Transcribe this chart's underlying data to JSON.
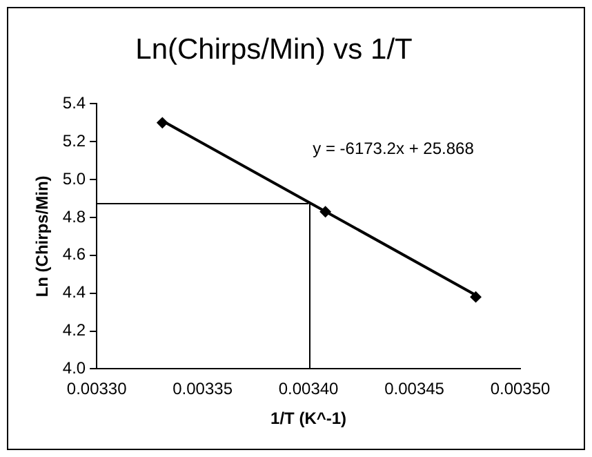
{
  "chart_data": {
    "type": "scatter",
    "title": "Ln(Chirps/Min) vs 1/T",
    "xlabel": "1/T (K^-1)",
    "ylabel": "Ln (Chirps/Min)",
    "x": [
      0.003331,
      0.003408,
      0.003479
    ],
    "series": [
      {
        "color": "#000000",
        "values": [
          5.3,
          4.83,
          4.38
        ],
        "marker": "diamond"
      },
      {
        "type": "line",
        "color": "#000000",
        "x": [
          0.003331,
          0.003479
        ],
        "values": [
          5.31,
          4.39
        ],
        "marker": "none",
        "line_style": "solid"
      }
    ],
    "xlim": [
      0.0033,
      0.0035
    ],
    "xticks": [
      {
        "value": 0.0033,
        "label": "0.00330"
      },
      {
        "value": 0.00335,
        "label": "0.00335"
      },
      {
        "value": 0.0034,
        "label": "0.00340"
      },
      {
        "value": 0.00345,
        "label": "0.00345"
      },
      {
        "value": 0.0035,
        "label": "0.00350"
      }
    ],
    "ylim": [
      4.0,
      5.4
    ],
    "yticks": [
      {
        "value": 4.0,
        "label": "4.0"
      },
      {
        "value": 4.2,
        "label": "4.2"
      },
      {
        "value": 4.4,
        "label": "4.4"
      },
      {
        "value": 4.6,
        "label": "4.6"
      },
      {
        "value": 4.8,
        "label": "4.8"
      },
      {
        "value": 5.0,
        "label": "5.0"
      },
      {
        "value": 5.2,
        "label": "5.2"
      },
      {
        "value": 5.4,
        "label": "5.4"
      }
    ],
    "ref_lines": [
      {
        "axis": "x",
        "value": 0.0034,
        "color": "#000000"
      },
      {
        "axis": "y",
        "value": 4.88,
        "color": "#000000"
      }
    ],
    "annotations": [
      "y = -6173.2x + 25.868"
    ],
    "grid": false,
    "legend": false
  }
}
